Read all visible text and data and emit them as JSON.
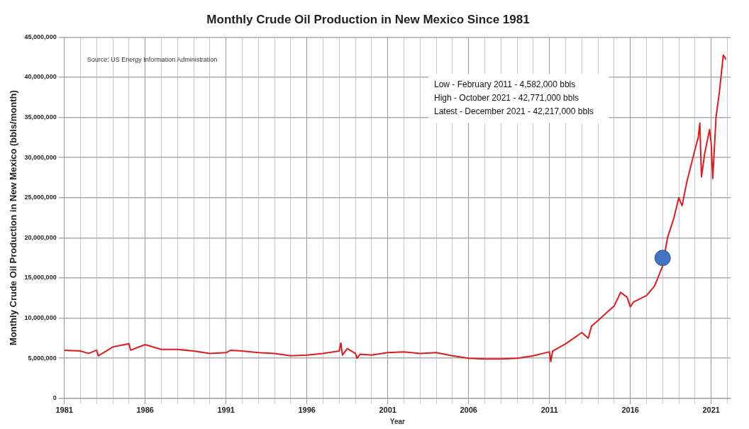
{
  "chart_data": {
    "type": "line",
    "title": "Monthly Crude Oil Production in New Mexico Since 1981",
    "xlabel": "Year",
    "ylabel": "Monthly Crude Oil Production in New Mexico (bbls/month)",
    "annotations": [
      "Source: US Energy Information Administration",
      "Low - February 2011 - 4,582,000 bbls",
      "High - October 2021 - 42,771,000 bbls",
      "Latest - December 2021 - 42,217,000 bbls"
    ],
    "xlim": [
      1981,
      2022.2
    ],
    "xticks": [
      1981,
      {
        "value": 1982,
        "label": null
      },
      {
        "value": 1983,
        "label": null
      },
      {
        "value": 1984,
        "label": null
      },
      {
        "value": 1985,
        "label": null
      },
      1986,
      {
        "value": 1987,
        "label": null
      },
      {
        "value": 1988,
        "label": null
      },
      {
        "value": 1989,
        "label": null
      },
      {
        "value": 1990,
        "label": null
      },
      1991,
      {
        "value": 1992,
        "label": null
      },
      {
        "value": 1993,
        "label": null
      },
      {
        "value": 1994,
        "label": null
      },
      {
        "value": 1995,
        "label": null
      },
      1996,
      {
        "value": 1997,
        "label": null
      },
      {
        "value": 1998,
        "label": null
      },
      {
        "value": 1999,
        "label": null
      },
      {
        "value": 2000,
        "label": null
      },
      2001,
      {
        "value": 2002,
        "label": null
      },
      {
        "value": 2003,
        "label": null
      },
      {
        "value": 2004,
        "label": null
      },
      {
        "value": 2005,
        "label": null
      },
      2006,
      {
        "value": 2007,
        "label": null
      },
      {
        "value": 2008,
        "label": null
      },
      {
        "value": 2009,
        "label": null
      },
      {
        "value": 2010,
        "label": null
      },
      2011,
      {
        "value": 2012,
        "label": null
      },
      {
        "value": 2013,
        "label": null
      },
      {
        "value": 2014,
        "label": null
      },
      {
        "value": 2015,
        "label": null
      },
      2016,
      {
        "value": 2017,
        "label": null
      },
      {
        "value": 2018,
        "label": null
      },
      {
        "value": 2019,
        "label": null
      },
      {
        "value": 2020,
        "label": null
      },
      2021,
      {
        "value": 2022,
        "label": null
      }
    ],
    "ylim": [
      0,
      45000000
    ],
    "yticks": [
      0,
      {
        "value": 5000000,
        "label": "5,000,000"
      },
      {
        "value": 10000000,
        "label": "10,000,000"
      },
      {
        "value": 15000000,
        "label": "15,000,000"
      },
      {
        "value": 20000000,
        "label": "20,000,000"
      },
      {
        "value": 25000000,
        "label": "25,000,000"
      },
      {
        "value": 30000000,
        "label": "30,000,000"
      },
      {
        "value": 35000000,
        "label": "35,000,000"
      },
      {
        "value": 40000000,
        "label": "40,000,000"
      },
      {
        "value": 45000000,
        "label": "45,000,000"
      }
    ],
    "grid": true,
    "legend": false,
    "marker": "none",
    "line_style": "solid",
    "series": [
      {
        "type": "line",
        "color": "#e31a1c",
        "x": [
          1981,
          1982,
          1982.5,
          1983,
          1983.1,
          1984,
          1985,
          1985.1,
          1986,
          1987,
          1988,
          1989,
          1990,
          1991,
          1991.3,
          1992,
          1993,
          1994,
          1995,
          1996,
          1997,
          1998,
          1998.1,
          1998.2,
          1998.5,
          1999,
          1999.1,
          1999.3,
          2000,
          2001,
          2002,
          2003,
          2004,
          2005,
          2006,
          2007,
          2008,
          2009,
          2010,
          2011,
          2011.08,
          2011.2,
          2012,
          2013,
          2013.4,
          2013.6,
          2014,
          2015,
          2015.4,
          2015.8,
          2016,
          2016.2,
          2017,
          2017.5,
          2018,
          2018.3,
          2018.7,
          2019,
          2019.2,
          2019.5,
          2020,
          2020.2,
          2020.3,
          2020.4,
          2020.6,
          2020.9,
          2021,
          2021.1,
          2021.3,
          2021.5,
          2021.75,
          2021.92
        ],
        "values": [
          6000000,
          5900000,
          5600000,
          6000000,
          5300000,
          6400000,
          6800000,
          6000000,
          6700000,
          6100000,
          6100000,
          5900000,
          5600000,
          5700000,
          6000000,
          5900000,
          5700000,
          5600000,
          5300000,
          5400000,
          5600000,
          5900000,
          6900000,
          5400000,
          6200000,
          5600000,
          5000000,
          5500000,
          5400000,
          5700000,
          5800000,
          5600000,
          5700000,
          5300000,
          5000000,
          4900000,
          4900000,
          5000000,
          5300000,
          5800000,
          4582000,
          5900000,
          6800000,
          8200000,
          7500000,
          9000000,
          9700000,
          11500000,
          13200000,
          12600000,
          11400000,
          12000000,
          12800000,
          14000000,
          16500000,
          20000000,
          22500000,
          25000000,
          24000000,
          27000000,
          31000000,
          32500000,
          34300000,
          27600000,
          30500000,
          33500000,
          31800000,
          27400000,
          35000000,
          38000000,
          42771000,
          42217000
        ]
      },
      {
        "type": "scatter",
        "marker": "circle",
        "color": "#4472c4",
        "x": [
          2018
        ],
        "values": [
          17500000
        ]
      }
    ]
  }
}
